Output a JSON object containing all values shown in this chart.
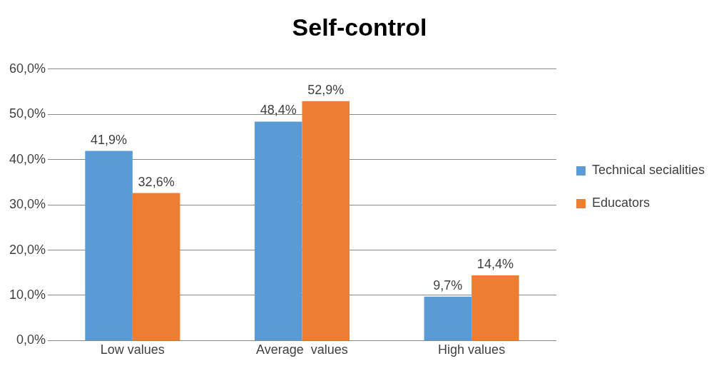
{
  "chart_data": {
    "type": "bar",
    "title": "Self-control",
    "categories": [
      "Low values",
      "Average  values",
      "High values"
    ],
    "series": [
      {
        "name": "Technical secialities",
        "color": "#5b9bd5",
        "values": [
          41.9,
          48.4,
          9.7
        ],
        "value_labels": [
          "41,9%",
          "48,4%",
          "9,7%"
        ]
      },
      {
        "name": "Educators",
        "color": "#ed7d31",
        "values": [
          32.6,
          52.9,
          14.4
        ],
        "value_labels": [
          "32,6%",
          "52,9%",
          "14,4%"
        ]
      }
    ],
    "ylim": [
      0,
      60
    ],
    "yticks": [
      {
        "value": 0,
        "label": "0,0%"
      },
      {
        "value": 10,
        "label": "10,0%"
      },
      {
        "value": 20,
        "label": "20,0%"
      },
      {
        "value": 30,
        "label": "30,0%"
      },
      {
        "value": 40,
        "label": "40,0%"
      },
      {
        "value": 50,
        "label": "50,0%"
      },
      {
        "value": 60,
        "label": "60,0%"
      }
    ],
    "grid": "y",
    "legend": "right"
  }
}
